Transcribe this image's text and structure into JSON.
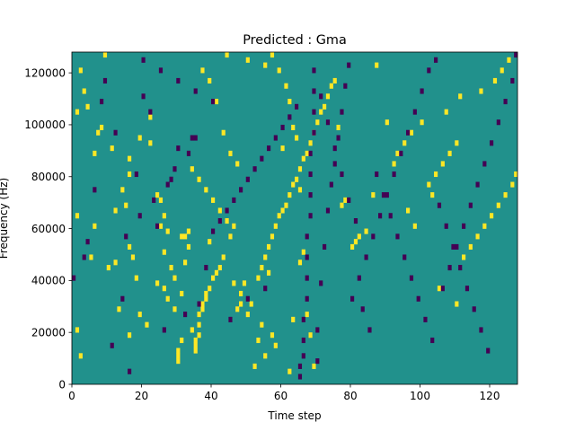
{
  "chart_data": {
    "type": "heatmap",
    "title": "Predicted : Gma",
    "xlabel": "Time step",
    "ylabel": "Frequency (Hz)",
    "xlim": [
      0,
      128
    ],
    "ylim": [
      0,
      128000
    ],
    "x_ticks": [
      0,
      20,
      40,
      60,
      80,
      100,
      120
    ],
    "y_ticks": [
      0,
      20000,
      40000,
      60000,
      80000,
      100000,
      120000
    ],
    "y_tick_labels": [
      "0",
      "20000",
      "40000",
      "60000",
      "80000",
      "100000",
      "120000"
    ],
    "grid": false,
    "legend": "none",
    "colormap": "viridis",
    "colors": {
      "background": "#21918c",
      "high": "#fde725",
      "low": "#440154"
    },
    "n_bins": 64,
    "bin_width_hz": 2000,
    "cell_values": {
      "background": 0,
      "high": 1,
      "low": -1
    },
    "high_cells": [
      [
        1,
        10
      ],
      [
        1,
        32
      ],
      [
        1,
        52
      ],
      [
        2,
        60
      ],
      [
        2,
        5
      ],
      [
        5,
        24
      ],
      [
        6,
        30
      ],
      [
        6,
        44
      ],
      [
        8,
        49
      ],
      [
        9,
        63
      ],
      [
        10,
        22
      ],
      [
        12,
        23
      ],
      [
        12,
        33
      ],
      [
        13,
        14
      ],
      [
        16,
        9
      ],
      [
        16,
        26
      ],
      [
        16,
        40
      ],
      [
        16,
        43
      ],
      [
        17,
        24
      ],
      [
        19,
        47
      ],
      [
        22,
        46
      ],
      [
        22,
        51
      ],
      [
        24,
        36
      ],
      [
        25,
        35
      ],
      [
        25,
        30
      ],
      [
        26,
        32
      ],
      [
        26,
        25
      ],
      [
        27,
        29
      ],
      [
        28,
        22
      ],
      [
        29,
        14
      ],
      [
        29,
        20
      ],
      [
        30,
        4
      ],
      [
        30,
        5
      ],
      [
        30,
        6
      ],
      [
        31,
        8
      ],
      [
        31,
        17
      ],
      [
        32,
        23
      ],
      [
        32,
        28
      ],
      [
        33,
        29
      ],
      [
        34,
        10
      ],
      [
        35,
        6
      ],
      [
        35,
        7
      ],
      [
        35,
        8
      ],
      [
        36,
        9
      ],
      [
        36,
        11
      ],
      [
        36,
        13
      ],
      [
        37,
        14
      ],
      [
        37,
        15
      ],
      [
        38,
        16
      ],
      [
        38,
        17
      ],
      [
        39,
        18
      ],
      [
        40,
        20
      ],
      [
        41,
        21
      ],
      [
        42,
        22
      ],
      [
        43,
        24
      ],
      [
        45,
        28
      ],
      [
        46,
        30
      ],
      [
        47,
        14
      ],
      [
        48,
        15
      ],
      [
        53,
        20
      ],
      [
        54,
        22
      ],
      [
        55,
        24
      ],
      [
        56,
        26
      ],
      [
        57,
        28
      ],
      [
        58,
        30
      ],
      [
        59,
        32
      ],
      [
        60,
        33
      ],
      [
        61,
        34
      ],
      [
        62,
        36
      ],
      [
        63,
        38
      ],
      [
        64,
        39
      ],
      [
        65,
        41
      ],
      [
        66,
        43
      ],
      [
        67,
        44
      ],
      [
        68,
        46
      ],
      [
        69,
        48
      ],
      [
        70,
        50
      ],
      [
        71,
        52
      ],
      [
        72,
        53
      ],
      [
        73,
        55
      ],
      [
        74,
        57
      ],
      [
        75,
        58
      ],
      [
        76,
        49
      ],
      [
        77,
        34
      ],
      [
        78,
        35
      ],
      [
        80,
        26
      ],
      [
        81,
        27
      ],
      [
        82,
        28
      ],
      [
        84,
        29
      ],
      [
        86,
        36
      ],
      [
        90,
        50
      ],
      [
        92,
        42
      ],
      [
        93,
        44
      ],
      [
        95,
        46
      ],
      [
        97,
        48
      ],
      [
        100,
        50
      ],
      [
        102,
        38
      ],
      [
        104,
        40
      ],
      [
        106,
        42
      ],
      [
        108,
        44
      ],
      [
        110,
        46
      ],
      [
        112,
        24
      ],
      [
        114,
        26
      ],
      [
        116,
        28
      ],
      [
        118,
        30
      ],
      [
        120,
        32
      ],
      [
        122,
        34
      ],
      [
        124,
        36
      ],
      [
        126,
        38
      ],
      [
        127,
        40
      ],
      [
        110,
        15
      ],
      [
        105,
        18
      ],
      [
        98,
        30
      ],
      [
        96,
        33
      ],
      [
        103,
        36
      ],
      [
        107,
        52
      ],
      [
        111,
        55
      ],
      [
        117,
        56
      ],
      [
        121,
        58
      ],
      [
        123,
        60
      ],
      [
        125,
        62
      ],
      [
        87,
        61
      ],
      [
        55,
        61
      ],
      [
        50,
        62
      ],
      [
        44,
        63
      ],
      [
        39,
        27
      ],
      [
        33,
        26
      ],
      [
        31,
        28
      ],
      [
        27,
        16
      ],
      [
        26,
        18
      ],
      [
        24,
        19
      ],
      [
        21,
        11
      ],
      [
        19,
        13
      ],
      [
        18,
        20
      ],
      [
        15,
        34
      ],
      [
        14,
        37
      ],
      [
        11,
        45
      ],
      [
        7,
        48
      ],
      [
        4,
        53
      ],
      [
        3,
        56
      ],
      [
        62,
        2
      ],
      [
        63,
        12
      ],
      [
        64,
        47
      ],
      [
        65,
        23
      ],
      [
        66,
        25
      ],
      [
        60,
        45
      ],
      [
        58,
        7
      ],
      [
        57,
        9
      ],
      [
        54,
        11
      ],
      [
        52,
        3
      ],
      [
        50,
        13
      ],
      [
        48,
        17
      ],
      [
        46,
        19
      ],
      [
        44,
        31
      ],
      [
        42,
        33
      ],
      [
        40,
        35
      ],
      [
        38,
        37
      ],
      [
        36,
        39
      ],
      [
        34,
        41
      ],
      [
        69,
        3
      ],
      [
        68,
        9
      ],
      [
        67,
        13
      ],
      [
        65,
        37
      ],
      [
        63,
        49
      ],
      [
        62,
        54
      ],
      [
        61,
        57
      ],
      [
        59,
        60
      ],
      [
        57,
        63
      ],
      [
        56,
        21
      ],
      [
        55,
        5
      ],
      [
        53,
        8
      ],
      [
        51,
        15
      ],
      [
        49,
        19
      ],
      [
        47,
        42
      ],
      [
        45,
        44
      ],
      [
        43,
        48
      ],
      [
        41,
        54
      ],
      [
        39,
        58
      ],
      [
        37,
        60
      ]
    ],
    "low_cells": [
      [
        0,
        20
      ],
      [
        3,
        24
      ],
      [
        4,
        27
      ],
      [
        6,
        37
      ],
      [
        8,
        54
      ],
      [
        9,
        58
      ],
      [
        11,
        7
      ],
      [
        12,
        48
      ],
      [
        14,
        16
      ],
      [
        16,
        2
      ],
      [
        18,
        40
      ],
      [
        20,
        55
      ],
      [
        22,
        52
      ],
      [
        24,
        30
      ],
      [
        26,
        10
      ],
      [
        28,
        39
      ],
      [
        30,
        45
      ],
      [
        32,
        13
      ],
      [
        34,
        47
      ],
      [
        36,
        15
      ],
      [
        38,
        22
      ],
      [
        40,
        29
      ],
      [
        42,
        31
      ],
      [
        44,
        33
      ],
      [
        46,
        35
      ],
      [
        48,
        37
      ],
      [
        50,
        39
      ],
      [
        52,
        41
      ],
      [
        54,
        43
      ],
      [
        56,
        45
      ],
      [
        58,
        47
      ],
      [
        60,
        49
      ],
      [
        62,
        51
      ],
      [
        64,
        53
      ],
      [
        65,
        1
      ],
      [
        65,
        3
      ],
      [
        66,
        5
      ],
      [
        66,
        8
      ],
      [
        66,
        12
      ],
      [
        67,
        16
      ],
      [
        67,
        20
      ],
      [
        67,
        24
      ],
      [
        67,
        28
      ],
      [
        68,
        32
      ],
      [
        68,
        36
      ],
      [
        68,
        40
      ],
      [
        68,
        44
      ],
      [
        69,
        48
      ],
      [
        69,
        52
      ],
      [
        69,
        56
      ],
      [
        69,
        60
      ],
      [
        70,
        4
      ],
      [
        70,
        10
      ],
      [
        71,
        19
      ],
      [
        72,
        26
      ],
      [
        73,
        33
      ],
      [
        74,
        38
      ],
      [
        75,
        42
      ],
      [
        76,
        47
      ],
      [
        77,
        52
      ],
      [
        78,
        57
      ],
      [
        79,
        61
      ],
      [
        80,
        16
      ],
      [
        82,
        20
      ],
      [
        84,
        24
      ],
      [
        86,
        28
      ],
      [
        88,
        32
      ],
      [
        90,
        36
      ],
      [
        92,
        40
      ],
      [
        94,
        44
      ],
      [
        96,
        48
      ],
      [
        98,
        52
      ],
      [
        100,
        56
      ],
      [
        102,
        60
      ],
      [
        104,
        62
      ],
      [
        106,
        18
      ],
      [
        108,
        22
      ],
      [
        110,
        26
      ],
      [
        112,
        30
      ],
      [
        114,
        34
      ],
      [
        116,
        38
      ],
      [
        118,
        42
      ],
      [
        120,
        46
      ],
      [
        122,
        50
      ],
      [
        124,
        54
      ],
      [
        126,
        58
      ],
      [
        127,
        63
      ],
      [
        85,
        10
      ],
      [
        83,
        14
      ],
      [
        81,
        31
      ],
      [
        79,
        35
      ],
      [
        77,
        40
      ],
      [
        75,
        45
      ],
      [
        73,
        50
      ],
      [
        71,
        55
      ],
      [
        103,
        8
      ],
      [
        101,
        12
      ],
      [
        99,
        16
      ],
      [
        97,
        20
      ],
      [
        95,
        24
      ],
      [
        93,
        28
      ],
      [
        91,
        32
      ],
      [
        89,
        36
      ],
      [
        87,
        40
      ],
      [
        119,
        6
      ],
      [
        117,
        10
      ],
      [
        115,
        14
      ],
      [
        113,
        18
      ],
      [
        111,
        22
      ],
      [
        109,
        26
      ],
      [
        107,
        30
      ],
      [
        105,
        34
      ],
      [
        20,
        62
      ],
      [
        25,
        60
      ],
      [
        30,
        58
      ],
      [
        35,
        56
      ],
      [
        40,
        54
      ],
      [
        45,
        12
      ],
      [
        50,
        16
      ],
      [
        55,
        18
      ],
      [
        35,
        47
      ],
      [
        33,
        44
      ],
      [
        29,
        41
      ],
      [
        27,
        38
      ],
      [
        23,
        35
      ],
      [
        19,
        32
      ],
      [
        15,
        28
      ]
    ]
  }
}
